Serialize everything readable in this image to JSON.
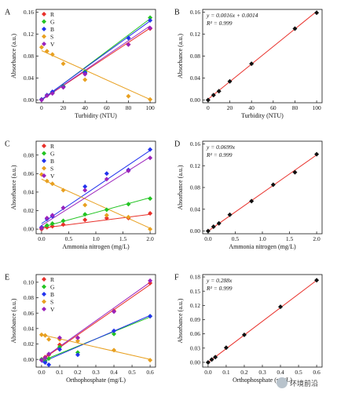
{
  "figure": {
    "watermark_text": "环境前沿"
  },
  "chart_data": [
    {
      "panel": "A",
      "type": "scatter",
      "xlabel": "Turbidity (NTU)",
      "ylabel": "Absorbance (a.u.)",
      "xlim": [
        -5,
        105
      ],
      "ylim": [
        -0.005,
        0.165
      ],
      "xticks": [
        0,
        20,
        40,
        60,
        80,
        100
      ],
      "yticks": [
        0.0,
        0.04,
        0.08,
        0.12,
        0.16
      ],
      "legend": "top-left",
      "series": [
        {
          "name": "R",
          "color": "#e8302a",
          "marker": "diamond",
          "x": [
            0,
            5,
            10,
            20,
            40,
            80,
            100
          ],
          "y": [
            0.001,
            0.008,
            0.013,
            0.024,
            0.049,
            0.101,
            0.13
          ],
          "fit": [
            [
              0,
              0.0
            ],
            [
              100,
              0.131
            ]
          ]
        },
        {
          "name": "G",
          "color": "#22c422",
          "marker": "diamond",
          "x": [
            0,
            5,
            10,
            20,
            40,
            80,
            100
          ],
          "y": [
            0.001,
            0.009,
            0.014,
            0.025,
            0.052,
            0.113,
            0.15
          ],
          "fit": [
            [
              0,
              0.0
            ],
            [
              100,
              0.148
            ]
          ]
        },
        {
          "name": "B",
          "color": "#2233ee",
          "marker": "diamond",
          "x": [
            0,
            5,
            10,
            20,
            40,
            80,
            100
          ],
          "y": [
            0.001,
            0.009,
            0.015,
            0.024,
            0.05,
            0.113,
            0.145
          ],
          "fit": [
            [
              0,
              0.001
            ],
            [
              100,
              0.144
            ]
          ]
        },
        {
          "name": "S",
          "color": "#e8a020",
          "marker": "diamond",
          "x": [
            0,
            5,
            10,
            20,
            40,
            80,
            100
          ],
          "y": [
            0.096,
            0.089,
            0.083,
            0.066,
            0.037,
            0.007,
            0.001
          ],
          "fit": [
            [
              0,
              0.09
            ],
            [
              100,
              0.001
            ]
          ]
        },
        {
          "name": "V",
          "color": "#9b22bb",
          "marker": "diamond",
          "x": [
            0,
            5,
            10,
            20,
            40,
            80,
            100
          ],
          "y": [
            0.0,
            0.008,
            0.012,
            0.023,
            0.047,
            0.101,
            0.131
          ],
          "fit": [
            [
              0,
              0.0
            ],
            [
              100,
              0.135
            ]
          ]
        }
      ]
    },
    {
      "panel": "B",
      "type": "scatter",
      "xlabel": "Turbidity (NTU)",
      "ylabel": "Absorbance (a.u.)",
      "xlim": [
        -5,
        105
      ],
      "ylim": [
        -0.005,
        0.165
      ],
      "xticks": [
        0,
        20,
        40,
        60,
        80,
        100
      ],
      "yticks": [
        0.0,
        0.04,
        0.08,
        0.12,
        0.16
      ],
      "equation": "y = 0.0016x + 0.0014",
      "r2": "R² = 0.999",
      "series": [
        {
          "name": "",
          "color": "#111111",
          "marker": "diamond",
          "line_color": "#e8302a",
          "x": [
            0,
            5,
            10,
            20,
            40,
            80,
            100
          ],
          "y": [
            0.0,
            0.009,
            0.016,
            0.034,
            0.066,
            0.13,
            0.159
          ],
          "fit": [
            [
              0,
              0.0014
            ],
            [
              100,
              0.1614
            ]
          ]
        }
      ]
    },
    {
      "panel": "C",
      "type": "scatter",
      "xlabel": "Ammonia nitrogen (mg/L)",
      "ylabel": "Absorbance (a.u.)",
      "xlim": [
        -0.1,
        2.1
      ],
      "ylim": [
        -0.005,
        0.095
      ],
      "xticks": [
        0.0,
        0.5,
        1.0,
        1.5,
        2.0
      ],
      "yticks": [
        0.0,
        0.02,
        0.04,
        0.06,
        0.08
      ],
      "legend": "top-left",
      "series": [
        {
          "name": "R",
          "color": "#e8302a",
          "marker": "diamond",
          "x": [
            0,
            0.1,
            0.2,
            0.4,
            0.8,
            1.2,
            1.6,
            2.0
          ],
          "y": [
            0.0,
            0.002,
            0.003,
            0.005,
            0.01,
            0.012,
            0.012,
            0.017
          ],
          "fit": [
            [
              0,
              0.001
            ],
            [
              2.0,
              0.016
            ]
          ]
        },
        {
          "name": "G",
          "color": "#22c422",
          "marker": "diamond",
          "x": [
            0,
            0.1,
            0.2,
            0.4,
            0.8,
            1.2,
            1.6,
            2.0
          ],
          "y": [
            0.001,
            0.004,
            0.006,
            0.009,
            0.016,
            0.021,
            0.027,
            0.033
          ],
          "fit": [
            [
              0,
              0.002
            ],
            [
              2.0,
              0.034
            ]
          ]
        },
        {
          "name": "B",
          "color": "#2233ee",
          "marker": "diamond",
          "x": [
            0,
            0.1,
            0.2,
            0.4,
            0.8,
            1.2,
            1.6,
            2.0
          ],
          "y": [
            0.002,
            0.011,
            0.014,
            0.023,
            0.046,
            0.06,
            0.064,
            0.086
          ],
          "fit": [
            [
              0,
              0.006
            ],
            [
              2.0,
              0.085
            ]
          ]
        },
        {
          "name": "S",
          "color": "#e8a020",
          "marker": "diamond",
          "x": [
            0,
            0.1,
            0.2,
            0.4,
            0.8,
            1.2,
            1.6,
            2.0
          ],
          "y": [
            0.059,
            0.052,
            0.049,
            0.042,
            0.026,
            0.015,
            0.013,
            0.0
          ],
          "fit": [
            [
              0,
              0.054
            ],
            [
              2.0,
              0.001
            ]
          ]
        },
        {
          "name": "V",
          "color": "#9b22bb",
          "marker": "diamond",
          "x": [
            0,
            0.1,
            0.2,
            0.4,
            0.8,
            1.2,
            1.6,
            2.0
          ],
          "y": [
            0.001,
            0.012,
            0.015,
            0.023,
            0.042,
            0.054,
            0.063,
            0.077
          ],
          "fit": [
            [
              0,
              0.004
            ],
            [
              2.0,
              0.078
            ]
          ]
        }
      ]
    },
    {
      "panel": "D",
      "type": "scatter",
      "xlabel": "Ammonia nitrogen (mg/L)",
      "ylabel": "Absorbance (a.u.)",
      "xlim": [
        -0.1,
        2.1
      ],
      "ylim": [
        -0.005,
        0.165
      ],
      "xticks": [
        0.0,
        0.5,
        1.0,
        1.5,
        2.0
      ],
      "yticks": [
        0.0,
        0.04,
        0.08,
        0.12,
        0.16
      ],
      "equation": "y = 0.0699x",
      "r2": "R² = 0.999",
      "series": [
        {
          "name": "",
          "color": "#111111",
          "marker": "diamond",
          "line_color": "#e8302a",
          "x": [
            0,
            0.1,
            0.2,
            0.4,
            0.8,
            1.2,
            1.6,
            2.0
          ],
          "y": [
            0.0,
            0.008,
            0.014,
            0.03,
            0.055,
            0.085,
            0.108,
            0.141
          ],
          "fit": [
            [
              0,
              0.0
            ],
            [
              2.0,
              0.1398
            ]
          ]
        }
      ]
    },
    {
      "panel": "E",
      "type": "scatter",
      "xlabel": "Orthophosphate (mg/L)",
      "ylabel": "Absorbance (a.u.)",
      "xlim": [
        -0.03,
        0.63
      ],
      "ylim": [
        -0.01,
        0.11
      ],
      "xticks": [
        0.0,
        0.1,
        0.2,
        0.3,
        0.4,
        0.5,
        0.6
      ],
      "yticks": [
        0.0,
        0.02,
        0.04,
        0.06,
        0.08,
        0.1
      ],
      "legend": "top-left",
      "series": [
        {
          "name": "R",
          "color": "#e8302a",
          "marker": "diamond",
          "x": [
            0,
            0.02,
            0.04,
            0.1,
            0.2,
            0.4,
            0.6
          ],
          "y": [
            0.0,
            0.003,
            0.006,
            0.019,
            0.028,
            0.063,
            0.099
          ],
          "fit": [
            [
              0,
              -0.001
            ],
            [
              0.6,
              0.097
            ]
          ]
        },
        {
          "name": "G",
          "color": "#22c422",
          "marker": "diamond",
          "x": [
            0,
            0.02,
            0.04,
            0.1,
            0.2,
            0.4,
            0.6
          ],
          "y": [
            0.0,
            -0.002,
            0.001,
            0.016,
            0.009,
            0.033,
            0.056
          ],
          "fit": [
            [
              0,
              -0.002
            ],
            [
              0.6,
              0.055
            ]
          ]
        },
        {
          "name": "B",
          "color": "#2233ee",
          "marker": "diamond",
          "x": [
            0,
            0.02,
            0.04,
            0.1,
            0.2,
            0.4,
            0.6
          ],
          "y": [
            -0.001,
            -0.004,
            -0.007,
            0.013,
            0.006,
            0.037,
            0.056
          ],
          "fit": [
            [
              0,
              -0.004
            ],
            [
              0.6,
              0.057
            ]
          ]
        },
        {
          "name": "S",
          "color": "#e8a020",
          "marker": "diamond",
          "x": [
            0,
            0.02,
            0.04,
            0.1,
            0.2,
            0.4,
            0.6
          ],
          "y": [
            0.032,
            0.031,
            0.026,
            0.026,
            0.024,
            0.012,
            -0.001
          ],
          "fit": [
            [
              0,
              0.032
            ],
            [
              0.6,
              0.0
            ]
          ]
        },
        {
          "name": "V",
          "color": "#9b22bb",
          "marker": "diamond",
          "x": [
            0,
            0.02,
            0.04,
            0.1,
            0.2,
            0.4,
            0.6
          ],
          "y": [
            -0.001,
            0.002,
            0.007,
            0.028,
            0.028,
            0.062,
            0.102
          ],
          "fit": [
            [
              0,
              0.0
            ],
            [
              0.6,
              0.1
            ]
          ]
        }
      ]
    },
    {
      "panel": "F",
      "type": "scatter",
      "xlabel": "Orthophosphate (mg/L)",
      "ylabel": "Absorbance (a.u.)",
      "xlim": [
        -0.03,
        0.63
      ],
      "ylim": [
        -0.01,
        0.185
      ],
      "xticks": [
        0.0,
        0.1,
        0.2,
        0.3,
        0.4,
        0.5,
        0.6
      ],
      "yticks": [
        0.0,
        0.03,
        0.06,
        0.09,
        0.12,
        0.15,
        0.18
      ],
      "equation": "y = 0.288x",
      "r2": "R² = 0.999",
      "series": [
        {
          "name": "",
          "color": "#111111",
          "marker": "diamond",
          "line_color": "#e8302a",
          "x": [
            0,
            0.02,
            0.04,
            0.1,
            0.2,
            0.4,
            0.6
          ],
          "y": [
            0.0,
            0.006,
            0.011,
            0.031,
            0.058,
            0.117,
            0.173
          ],
          "fit": [
            [
              0,
              0.0
            ],
            [
              0.6,
              0.1728
            ]
          ]
        }
      ]
    }
  ]
}
